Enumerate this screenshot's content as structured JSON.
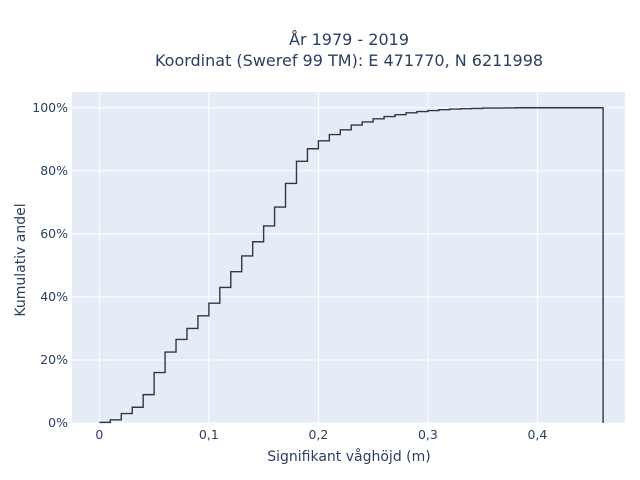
{
  "chart_data": {
    "type": "line",
    "line_shape": "step",
    "title_lines": [
      "År 1979 - 2019",
      "Koordinat (Sweref 99 TM): E 471770, N 6211998"
    ],
    "xlabel": "Signifikant våghöjd (m)",
    "ylabel": "Kumulativ andel",
    "xlim": [
      -0.025,
      0.48
    ],
    "ylim": [
      0,
      1.05
    ],
    "x_ticks": [
      0,
      0.1,
      0.2,
      0.3,
      0.4
    ],
    "x_tick_labels": [
      "0",
      "0,1",
      "0,2",
      "0,3",
      "0,4"
    ],
    "y_ticks": [
      0,
      0.2,
      0.4,
      0.6,
      0.8,
      1.0
    ],
    "y_tick_labels": [
      "0%",
      "20%",
      "40%",
      "60%",
      "80%",
      "100%"
    ],
    "grid": true,
    "colors": {
      "plot_bg": "#e5ecf6",
      "grid": "#ffffff",
      "line": "#2a3a4a",
      "text": "#2a3f5f"
    },
    "series": [
      {
        "x": [
          0,
          0.01,
          0.02,
          0.03,
          0.04,
          0.05,
          0.06,
          0.07,
          0.08,
          0.09,
          0.1,
          0.11,
          0.12,
          0.13,
          0.14,
          0.15,
          0.16,
          0.17,
          0.18,
          0.19,
          0.2,
          0.21,
          0.22,
          0.23,
          0.24,
          0.25,
          0.26,
          0.27,
          0.28,
          0.29,
          0.3,
          0.31,
          0.32,
          0.33,
          0.34,
          0.35,
          0.36,
          0.37,
          0.38,
          0.39,
          0.4,
          0.46,
          0.46
        ],
        "y": [
          0.002,
          0.01,
          0.03,
          0.05,
          0.09,
          0.16,
          0.225,
          0.265,
          0.3,
          0.34,
          0.38,
          0.43,
          0.48,
          0.53,
          0.575,
          0.625,
          0.685,
          0.76,
          0.83,
          0.87,
          0.895,
          0.915,
          0.93,
          0.945,
          0.955,
          0.965,
          0.972,
          0.978,
          0.984,
          0.988,
          0.991,
          0.994,
          0.996,
          0.997,
          0.998,
          0.999,
          0.999,
          0.9995,
          1.0,
          1.0,
          1.0,
          1.0,
          0
        ]
      }
    ]
  }
}
